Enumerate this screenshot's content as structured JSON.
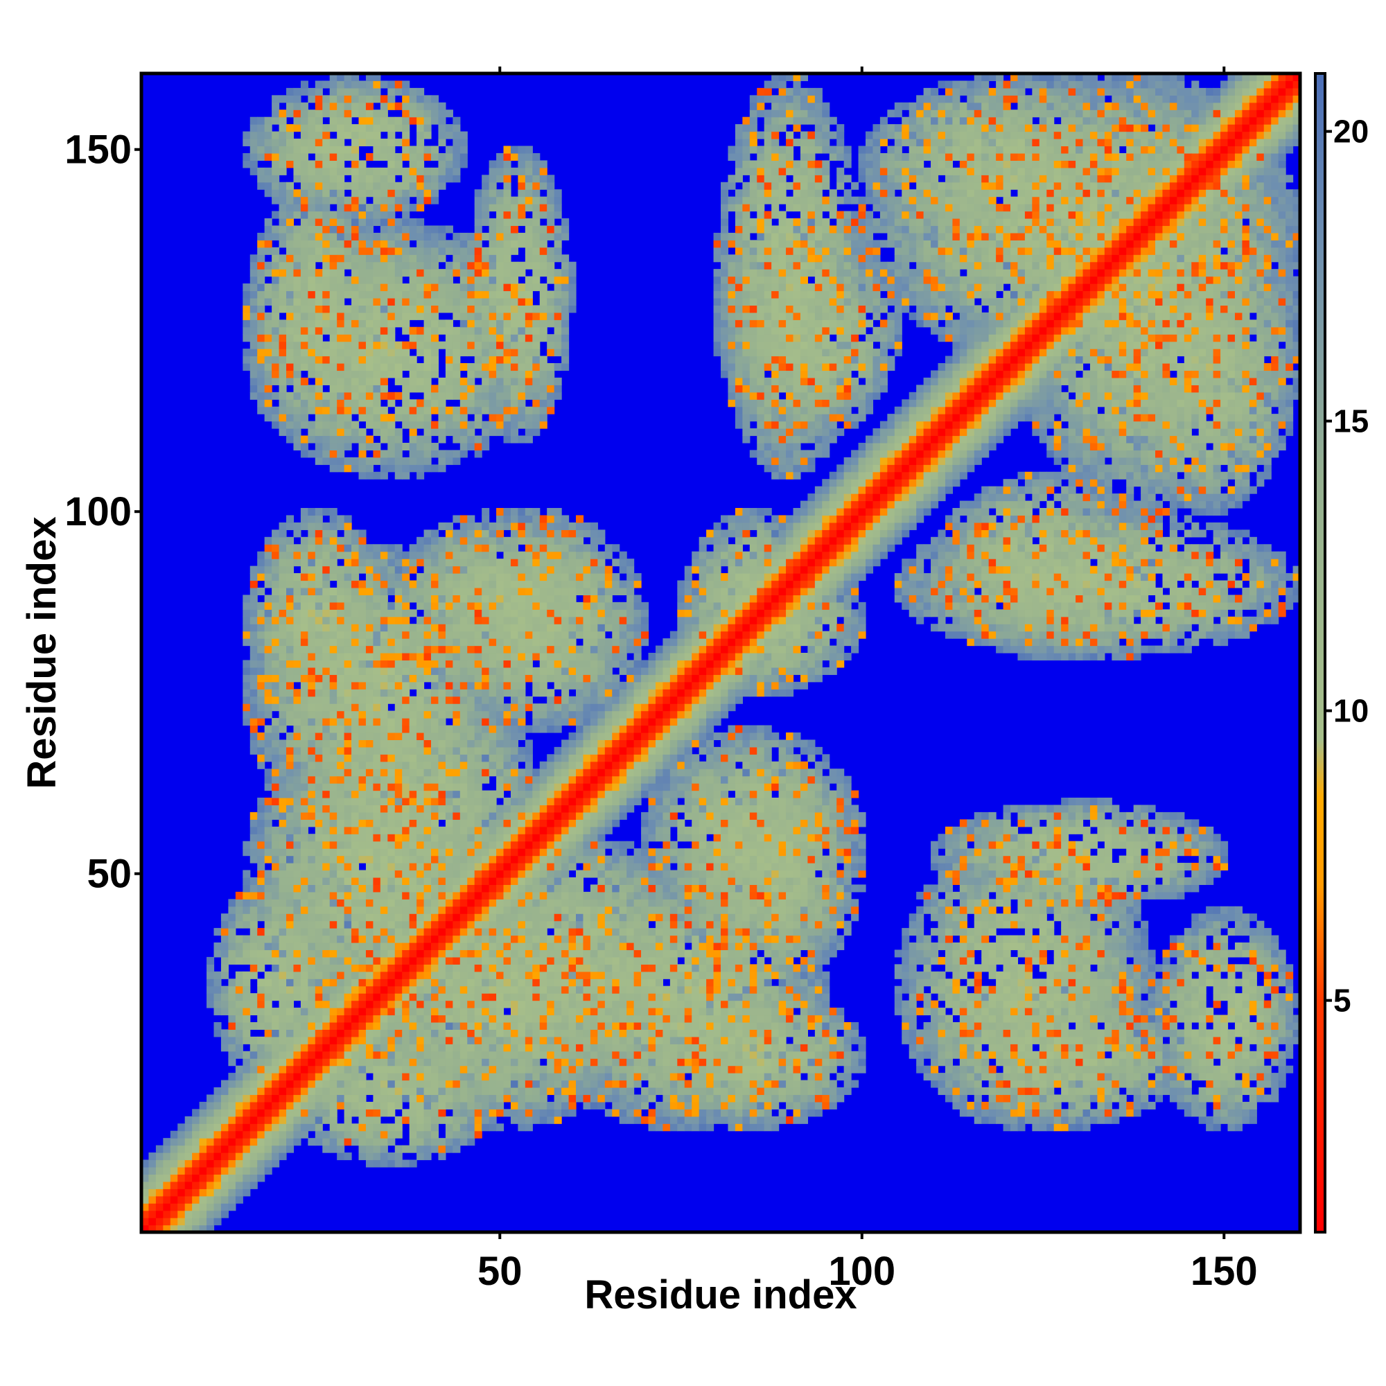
{
  "chart_data": {
    "type": "heatmap",
    "title": "",
    "xlabel": "Residue index",
    "ylabel": "Residue index",
    "x_range": [
      1,
      160
    ],
    "y_range": [
      1,
      160
    ],
    "x_ticks": [
      50,
      100,
      150
    ],
    "y_ticks": [
      50,
      100,
      150
    ],
    "colorbar": {
      "range": [
        1,
        21
      ],
      "ticks": [
        5,
        10,
        15,
        20
      ],
      "colors": [
        "#ff0000",
        "#ff9a00",
        "#a6be8a",
        "#5b7fb8",
        "#0000ee"
      ],
      "stops": [
        [
          1,
          "#ff0000"
        ],
        [
          5,
          "#ff3a00"
        ],
        [
          7,
          "#ff9a00"
        ],
        [
          8.5,
          "#ffaa00"
        ],
        [
          9.5,
          "#a6be8a"
        ],
        [
          14,
          "#95b090"
        ],
        [
          18,
          "#6e8fb0"
        ],
        [
          21,
          "#4c6fb8"
        ]
      ],
      "background_color": "#0000ee"
    },
    "grid": false,
    "matrix_symmetric": true,
    "diagonal_value": 1,
    "cutoff_value": 21,
    "contact_regions": [
      {
        "x": [
          1,
          160
        ],
        "y": [
          1,
          160
        ],
        "kind": "diagonal-band"
      },
      {
        "x": [
          10,
          30
        ],
        "y": [
          20,
          50
        ],
        "kind": "contact"
      },
      {
        "x": [
          20,
          55
        ],
        "y": [
          40,
          80
        ],
        "kind": "contact"
      },
      {
        "x": [
          30,
          70
        ],
        "y": [
          15,
          50
        ],
        "kind": "contact"
      },
      {
        "x": [
          55,
          95
        ],
        "y": [
          15,
          50
        ],
        "kind": "contact"
      },
      {
        "x": [
          70,
          100
        ],
        "y": [
          40,
          70
        ],
        "kind": "contact"
      },
      {
        "x": [
          15,
          35
        ],
        "y": [
          70,
          100
        ],
        "kind": "contact"
      },
      {
        "x": [
          35,
          65
        ],
        "y": [
          75,
          100
        ],
        "kind": "contact"
      },
      {
        "x": [
          75,
          95
        ],
        "y": [
          75,
          100
        ],
        "kind": "contact"
      },
      {
        "x": [
          15,
          35
        ],
        "y": [
          110,
          145
        ],
        "kind": "contact"
      },
      {
        "x": [
          45,
          60
        ],
        "y": [
          110,
          150
        ],
        "kind": "contact"
      },
      {
        "x": [
          80,
          100
        ],
        "y": [
          105,
          160
        ],
        "kind": "contact"
      },
      {
        "x": [
          100,
          160
        ],
        "y": [
          120,
          160
        ],
        "kind": "contact"
      },
      {
        "x": [
          110,
          140
        ],
        "y": [
          80,
          105
        ],
        "kind": "contact"
      },
      {
        "x": [
          135,
          160
        ],
        "y": [
          100,
          140
        ],
        "kind": "contact"
      },
      {
        "x": [
          105,
          140
        ],
        "y": [
          15,
          55
        ],
        "kind": "contact"
      },
      {
        "x": [
          140,
          160
        ],
        "y": [
          15,
          45
        ],
        "kind": "contact"
      }
    ]
  }
}
